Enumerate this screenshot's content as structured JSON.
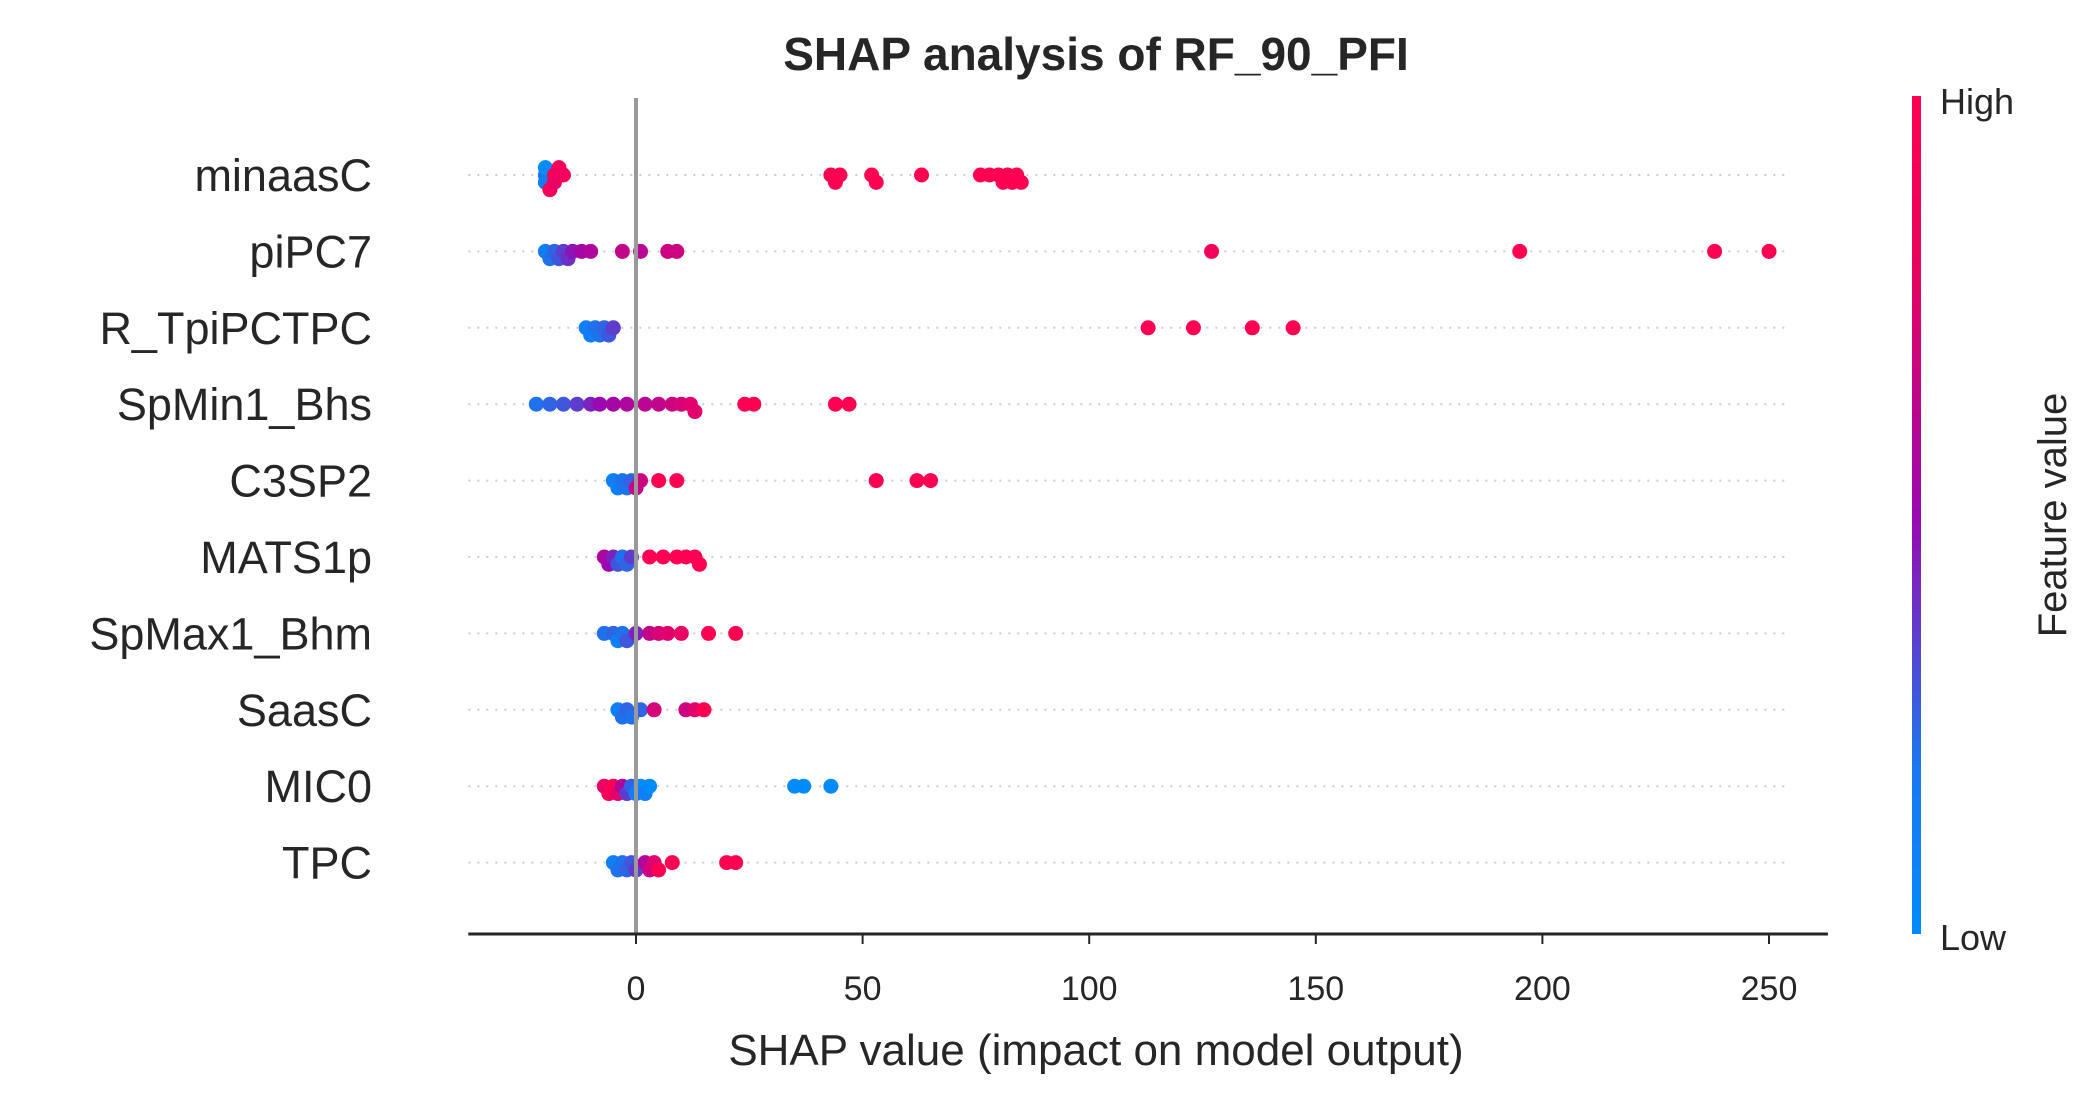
{
  "chart_data": {
    "type": "scatter",
    "subtype": "shap-beeswarm",
    "title": "SHAP analysis of RF_90_PFI",
    "xlabel": "SHAP value (impact on model output)",
    "xlim": [
      -37,
      263
    ],
    "xticks": [
      0,
      50,
      100,
      150,
      200,
      250
    ],
    "zero_line": true,
    "grid": "dotted horizontal row guides",
    "colorbar": {
      "label": "Feature value",
      "high_label": "High",
      "low_label": "Low",
      "low_color": "#008bfb",
      "high_color": "#ff0052",
      "mid_color": "#9b08b0",
      "placement": "right"
    },
    "features": [
      {
        "name": "minaasC",
        "points": [
          [
            -20,
            0.1
          ],
          [
            -20,
            0.05
          ],
          [
            -20,
            0.0
          ],
          [
            -19,
            0.95
          ],
          [
            -18,
            0.95
          ],
          [
            -18,
            0.9
          ],
          [
            -17,
            0.95
          ],
          [
            -16,
            0.95
          ],
          [
            43,
            1.0
          ],
          [
            44,
            1.0
          ],
          [
            45,
            1.0
          ],
          [
            52,
            1.0
          ],
          [
            53,
            1.0
          ],
          [
            63,
            1.0
          ],
          [
            76,
            1.0
          ],
          [
            78,
            1.0
          ],
          [
            80,
            1.0
          ],
          [
            81,
            1.0
          ],
          [
            82,
            1.0
          ],
          [
            83,
            1.0
          ],
          [
            84,
            1.0
          ],
          [
            85,
            1.0
          ]
        ]
      },
      {
        "name": "piPC7",
        "points": [
          [
            -20,
            0.05
          ],
          [
            -19,
            0.1
          ],
          [
            -18,
            0.15
          ],
          [
            -17,
            0.2
          ],
          [
            -16,
            0.3
          ],
          [
            -15,
            0.35
          ],
          [
            -14,
            0.45
          ],
          [
            -12,
            0.55
          ],
          [
            -10,
            0.6
          ],
          [
            -3,
            0.7
          ],
          [
            1,
            0.65
          ],
          [
            7,
            0.75
          ],
          [
            9,
            0.75
          ],
          [
            127,
            0.95
          ],
          [
            195,
            1.0
          ],
          [
            238,
            1.0
          ],
          [
            250,
            1.0
          ]
        ]
      },
      {
        "name": "R_TpiPCTPC",
        "points": [
          [
            -11,
            0.05
          ],
          [
            -10,
            0.05
          ],
          [
            -9,
            0.1
          ],
          [
            -8,
            0.1
          ],
          [
            -7,
            0.15
          ],
          [
            -6,
            0.2
          ],
          [
            -5,
            0.3
          ],
          [
            113,
            1.0
          ],
          [
            123,
            1.0
          ],
          [
            136,
            1.0
          ],
          [
            145,
            1.0
          ]
        ]
      },
      {
        "name": "SpMin1_Bhs",
        "points": [
          [
            -22,
            0.1
          ],
          [
            -19,
            0.15
          ],
          [
            -16,
            0.2
          ],
          [
            -13,
            0.3
          ],
          [
            -10,
            0.4
          ],
          [
            -8,
            0.5
          ],
          [
            -5,
            0.55
          ],
          [
            -2,
            0.6
          ],
          [
            2,
            0.65
          ],
          [
            5,
            0.7
          ],
          [
            8,
            0.75
          ],
          [
            10,
            0.8
          ],
          [
            12,
            0.85
          ],
          [
            13,
            0.85
          ],
          [
            24,
            1.0
          ],
          [
            26,
            1.0
          ],
          [
            44,
            1.0
          ],
          [
            47,
            1.0
          ]
        ]
      },
      {
        "name": "C3SP2",
        "points": [
          [
            -5,
            0.05
          ],
          [
            -4,
            0.05
          ],
          [
            -3,
            0.1
          ],
          [
            -2,
            0.1
          ],
          [
            -1,
            0.15
          ],
          [
            0,
            0.7
          ],
          [
            1,
            0.75
          ],
          [
            5,
            1.0
          ],
          [
            9,
            1.0
          ],
          [
            53,
            1.0
          ],
          [
            62,
            1.0
          ],
          [
            65,
            1.0
          ]
        ]
      },
      {
        "name": "MATS1p",
        "points": [
          [
            -7,
            0.6
          ],
          [
            -6,
            0.5
          ],
          [
            -5,
            0.4
          ],
          [
            -4,
            0.2
          ],
          [
            -3,
            0.1
          ],
          [
            -2,
            0.15
          ],
          [
            -1,
            0.3
          ],
          [
            3,
            1.0
          ],
          [
            6,
            1.0
          ],
          [
            9,
            1.0
          ],
          [
            11,
            1.0
          ],
          [
            13,
            1.0
          ],
          [
            14,
            1.0
          ]
        ]
      },
      {
        "name": "SpMax1_Bhm",
        "points": [
          [
            -7,
            0.1
          ],
          [
            -5,
            0.15
          ],
          [
            -4,
            0.05
          ],
          [
            -3,
            0.1
          ],
          [
            -2,
            0.2
          ],
          [
            0,
            0.4
          ],
          [
            3,
            0.7
          ],
          [
            5,
            0.8
          ],
          [
            7,
            0.85
          ],
          [
            10,
            0.9
          ],
          [
            16,
            1.0
          ],
          [
            22,
            1.0
          ]
        ]
      },
      {
        "name": "SaasC",
        "points": [
          [
            -4,
            0.05
          ],
          [
            -3,
            0.1
          ],
          [
            -2,
            0.15
          ],
          [
            -1,
            0.1
          ],
          [
            1,
            0.15
          ],
          [
            4,
            0.8
          ],
          [
            11,
            0.75
          ],
          [
            13,
            0.85
          ],
          [
            15,
            1.0
          ]
        ]
      },
      {
        "name": "MIC0",
        "points": [
          [
            -7,
            0.9
          ],
          [
            -6,
            0.95
          ],
          [
            -5,
            1.0
          ],
          [
            -4,
            0.85
          ],
          [
            -3,
            0.6
          ],
          [
            -2,
            0.3
          ],
          [
            -1,
            0.15
          ],
          [
            0,
            0.05
          ],
          [
            1,
            0.0
          ],
          [
            2,
            0.05
          ],
          [
            3,
            0.0
          ],
          [
            35,
            0.0
          ],
          [
            37,
            0.0
          ],
          [
            43,
            0.0
          ]
        ]
      },
      {
        "name": "TPC",
        "points": [
          [
            -5,
            0.05
          ],
          [
            -4,
            0.1
          ],
          [
            -3,
            0.1
          ],
          [
            -2,
            0.15
          ],
          [
            -1,
            0.2
          ],
          [
            0,
            0.3
          ],
          [
            2,
            0.6
          ],
          [
            3,
            0.75
          ],
          [
            4,
            0.85
          ],
          [
            5,
            1.0
          ],
          [
            8,
            1.0
          ],
          [
            20,
            1.0
          ],
          [
            22,
            1.0
          ]
        ]
      }
    ]
  }
}
